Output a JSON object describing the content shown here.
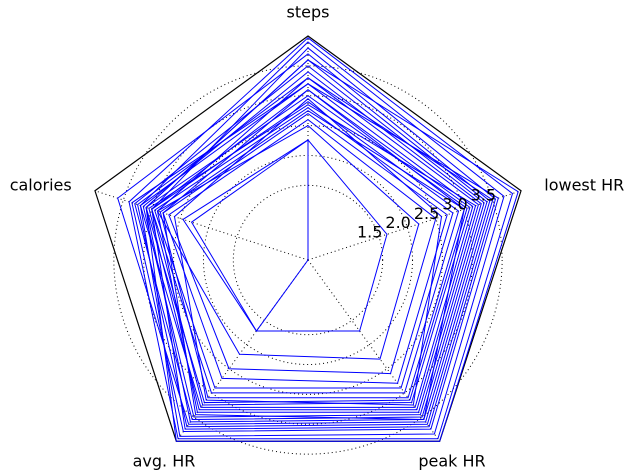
{
  "chart_data": {
    "type": "radar",
    "categories": [
      "steps",
      "lowest HR",
      "peak HR",
      "avg. HR",
      "calories"
    ],
    "color": "#0000ff",
    "ylim": [
      0.25,
      4.0
    ],
    "yticks": [
      1.5,
      {
        "value": 2,
        "label": "2.0"
      },
      2.5,
      {
        "value": 3,
        "label": "3.0"
      },
      3.5
    ],
    "grid": true,
    "series": [
      {
        "values": [
          2.26,
          1.64,
          1.72,
          1.72,
          2.45
        ]
      },
      {
        "values": [
          2.26,
          0.25,
          0.25,
          1.72,
          2.3
        ]
      },
      {
        "values": [
          2.5,
          2.2,
          2.3,
          2.2,
          2.9
        ]
      },
      {
        "values": [
          2.6,
          2.5,
          2.6,
          2.5,
          2.7
        ]
      },
      {
        "values": [
          2.7,
          2.7,
          2.8,
          2.7,
          2.8
        ]
      },
      {
        "values": [
          2.8,
          2.8,
          2.9,
          2.9,
          2.95
        ]
      },
      {
        "values": [
          2.9,
          2.9,
          3.0,
          3.0,
          3.0
        ]
      },
      {
        "values": [
          2.75,
          3.0,
          3.1,
          3.1,
          2.85
        ]
      },
      {
        "values": [
          3.0,
          3.05,
          3.15,
          3.2,
          3.1
        ]
      },
      {
        "values": [
          3.1,
          3.1,
          3.2,
          3.25,
          3.0
        ]
      },
      {
        "values": [
          3.2,
          3.15,
          3.3,
          3.3,
          3.2
        ]
      },
      {
        "values": [
          2.85,
          3.2,
          3.35,
          3.35,
          3.05
        ]
      },
      {
        "values": [
          3.3,
          3.25,
          3.4,
          3.4,
          2.9
        ]
      },
      {
        "values": [
          3.4,
          3.3,
          3.45,
          3.5,
          3.15
        ]
      },
      {
        "values": [
          3.5,
          3.35,
          3.5,
          3.55,
          3.3
        ]
      },
      {
        "values": [
          3.6,
          3.4,
          3.55,
          3.6,
          3.1
        ]
      },
      {
        "values": [
          3.7,
          3.45,
          3.6,
          3.65,
          3.6
        ]
      },
      {
        "values": [
          3.3,
          3.5,
          3.65,
          3.7,
          3.25
        ]
      },
      {
        "values": [
          3.8,
          3.55,
          3.7,
          3.75,
          3.0
        ]
      },
      {
        "values": [
          3.2,
          3.6,
          3.75,
          3.8,
          3.35
        ]
      },
      {
        "values": [
          3.9,
          3.7,
          3.85,
          3.9,
          3.2
        ]
      },
      {
        "values": [
          3.97,
          3.85,
          3.95,
          3.95,
          3.4
        ]
      },
      {
        "values": [
          3.6,
          3.95,
          4.0,
          4.0,
          3.1
        ]
      },
      {
        "values": [
          3.1,
          3.0,
          3.55,
          3.45,
          2.8
        ]
      },
      {
        "values": [
          2.95,
          2.6,
          3.25,
          3.15,
          2.6
        ]
      }
    ]
  }
}
